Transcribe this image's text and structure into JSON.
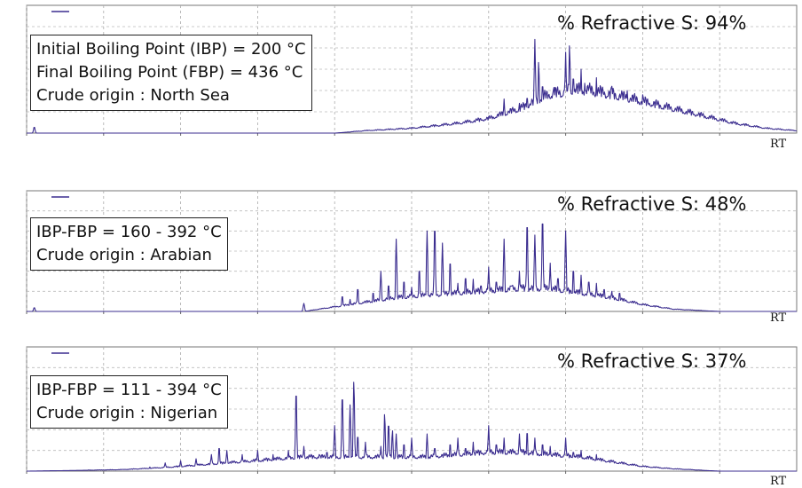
{
  "chart_data": [
    {
      "type": "line",
      "ylim": [
        0,
        30
      ],
      "xlim": [
        0,
        100
      ],
      "x_ticks": [
        0,
        10,
        20,
        30,
        40,
        50,
        60,
        70,
        80,
        90
      ],
      "xlabel": "RT",
      "grid": true,
      "color": "#3b2d8f",
      "annotation": "% Refractive S: 94%",
      "info_lines": [
        "Initial Boiling Point (IBP) = 200 °C",
        "Final Boiling Point (FBP) = 436 °C",
        "Crude origin : North Sea"
      ],
      "series": [
        {
          "envelope": [
            [
              0,
              0
            ],
            [
              40,
              0
            ],
            [
              44,
              0.5
            ],
            [
              50,
              1
            ],
            [
              56,
              2
            ],
            [
              60,
              3
            ],
            [
              64,
              5
            ],
            [
              68,
              8
            ],
            [
              72,
              9
            ],
            [
              76,
              8
            ],
            [
              80,
              6.5
            ],
            [
              84,
              5
            ],
            [
              88,
              3.5
            ],
            [
              92,
              2
            ],
            [
              96,
              1
            ],
            [
              100,
              0.5
            ]
          ],
          "peaks": [
            [
              1,
              1.5
            ],
            [
              48,
              1
            ],
            [
              52,
              1.5
            ],
            [
              53,
              1
            ],
            [
              55,
              2
            ],
            [
              60,
              2
            ],
            [
              62,
              8
            ],
            [
              64,
              7
            ],
            [
              65,
              9
            ],
            [
              66,
              22
            ],
            [
              66.5,
              17
            ],
            [
              67,
              12
            ],
            [
              68,
              8
            ],
            [
              68.5,
              11
            ],
            [
              69,
              7
            ],
            [
              70,
              19
            ],
            [
              70.5,
              21
            ],
            [
              71,
              14
            ],
            [
              72,
              15
            ],
            [
              72.5,
              12
            ],
            [
              73,
              11
            ],
            [
              74,
              13
            ],
            [
              74.5,
              10
            ],
            [
              75,
              10
            ],
            [
              76,
              11
            ],
            [
              77,
              9
            ],
            [
              78,
              10
            ],
            [
              79,
              8
            ],
            [
              80,
              9
            ],
            [
              81,
              7
            ],
            [
              82,
              7
            ]
          ]
        }
      ]
    },
    {
      "type": "line",
      "ylim": [
        0,
        30
      ],
      "xlim": [
        0,
        100
      ],
      "x_ticks": [
        0,
        10,
        20,
        30,
        40,
        50,
        60,
        70,
        80,
        90
      ],
      "xlabel": "RT",
      "grid": true,
      "color": "#3b2d8f",
      "annotation": "% Refractive S: 48%",
      "info_lines": [
        "IBP-FBP = 160 - 392 °C",
        "Crude origin : Arabian"
      ],
      "series": [
        {
          "envelope": [
            [
              0,
              0
            ],
            [
              36,
              0
            ],
            [
              40,
              1
            ],
            [
              44,
              2
            ],
            [
              48,
              3
            ],
            [
              52,
              3.5
            ],
            [
              56,
              4
            ],
            [
              60,
              4.5
            ],
            [
              64,
              5
            ],
            [
              68,
              5
            ],
            [
              72,
              4
            ],
            [
              76,
              3
            ],
            [
              80,
              1.5
            ],
            [
              84,
              0.5
            ],
            [
              90,
              0
            ],
            [
              100,
              0
            ]
          ],
          "peaks": [
            [
              1,
              1
            ],
            [
              36,
              2
            ],
            [
              41,
              4
            ],
            [
              42,
              3
            ],
            [
              43,
              6
            ],
            [
              45,
              5
            ],
            [
              46,
              10
            ],
            [
              47,
              7
            ],
            [
              48,
              18
            ],
            [
              49,
              8
            ],
            [
              50,
              6
            ],
            [
              51,
              11
            ],
            [
              52,
              20
            ],
            [
              53,
              22
            ],
            [
              54,
              17
            ],
            [
              55,
              13
            ],
            [
              56,
              7
            ],
            [
              57,
              9
            ],
            [
              58,
              8
            ],
            [
              59,
              7
            ],
            [
              60,
              11
            ],
            [
              61,
              8
            ],
            [
              62,
              18
            ],
            [
              63,
              7
            ],
            [
              64,
              10
            ],
            [
              65,
              23
            ],
            [
              66,
              19
            ],
            [
              67,
              24
            ],
            [
              68,
              12
            ],
            [
              69,
              9
            ],
            [
              70,
              20
            ],
            [
              71,
              11
            ],
            [
              72,
              9
            ],
            [
              73,
              8
            ],
            [
              74,
              7
            ],
            [
              75,
              6
            ],
            [
              76,
              5
            ],
            [
              77,
              5
            ]
          ]
        }
      ]
    },
    {
      "type": "line",
      "ylim": [
        0,
        30
      ],
      "xlim": [
        0,
        100
      ],
      "x_ticks": [
        0,
        10,
        20,
        30,
        40,
        50,
        60,
        70,
        80,
        90
      ],
      "xlabel": "RT",
      "grid": true,
      "color": "#3b2d8f",
      "annotation": "% Refractive S: 37%",
      "info_lines": [
        "IBP-FBP = 111 - 394 °C",
        "Crude origin : Nigerian"
      ],
      "series": [
        {
          "envelope": [
            [
              0,
              0
            ],
            [
              12,
              0.3
            ],
            [
              16,
              0.6
            ],
            [
              20,
              1
            ],
            [
              24,
              1.5
            ],
            [
              28,
              2
            ],
            [
              32,
              2.5
            ],
            [
              36,
              3
            ],
            [
              40,
              3
            ],
            [
              44,
              3
            ],
            [
              48,
              3
            ],
            [
              52,
              3
            ],
            [
              56,
              3.5
            ],
            [
              60,
              4
            ],
            [
              64,
              4
            ],
            [
              68,
              3.5
            ],
            [
              72,
              3
            ],
            [
              76,
              2
            ],
            [
              80,
              1
            ],
            [
              84,
              0.5
            ],
            [
              90,
              0
            ],
            [
              100,
              0
            ]
          ],
          "peaks": [
            [
              16,
              1
            ],
            [
              18,
              2
            ],
            [
              20,
              2.5
            ],
            [
              22,
              3
            ],
            [
              24,
              4
            ],
            [
              25,
              6
            ],
            [
              26,
              5
            ],
            [
              28,
              4
            ],
            [
              30,
              5
            ],
            [
              32,
              4
            ],
            [
              34,
              5
            ],
            [
              35,
              20
            ],
            [
              36,
              6
            ],
            [
              38,
              4
            ],
            [
              39,
              5
            ],
            [
              40,
              11
            ],
            [
              41,
              19
            ],
            [
              42,
              16
            ],
            [
              42.5,
              22
            ],
            [
              43,
              9
            ],
            [
              44,
              7
            ],
            [
              46,
              6
            ],
            [
              46.5,
              14
            ],
            [
              47,
              12
            ],
            [
              47.5,
              10
            ],
            [
              48,
              9
            ],
            [
              49,
              7
            ],
            [
              50,
              8
            ],
            [
              52,
              9
            ],
            [
              53,
              6
            ],
            [
              55,
              7
            ],
            [
              56,
              8
            ],
            [
              57,
              6
            ],
            [
              58,
              7
            ],
            [
              60,
              11
            ],
            [
              61,
              7
            ],
            [
              62,
              8
            ],
            [
              64,
              9
            ],
            [
              65,
              10
            ],
            [
              66,
              8
            ],
            [
              67,
              7
            ],
            [
              68,
              6
            ],
            [
              70,
              8
            ],
            [
              71,
              5
            ],
            [
              72,
              5
            ],
            [
              74,
              4
            ]
          ]
        }
      ]
    }
  ]
}
